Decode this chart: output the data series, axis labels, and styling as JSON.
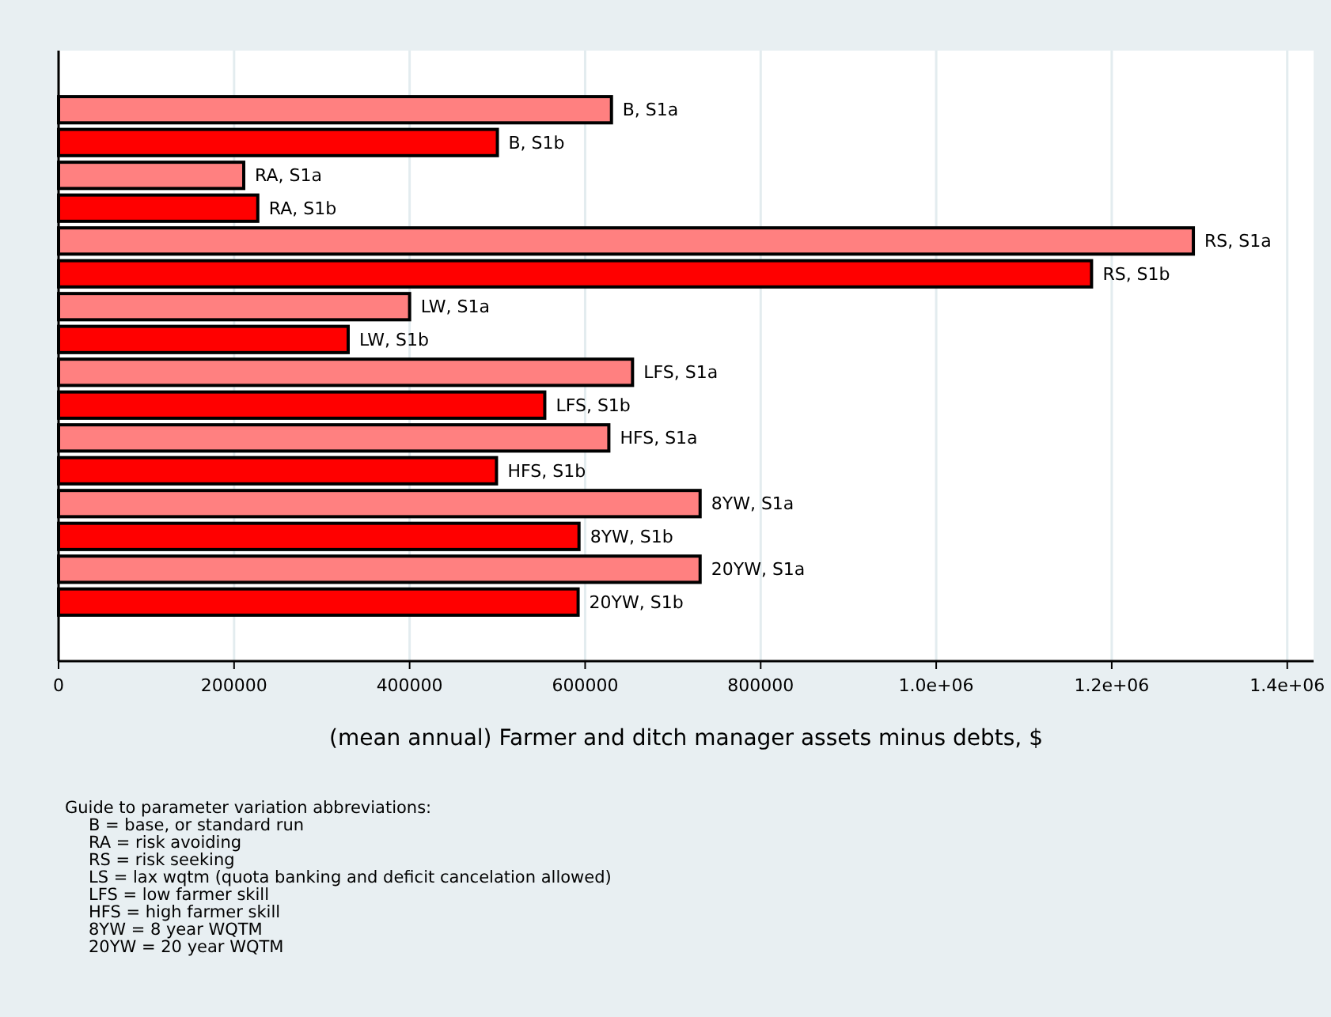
{
  "chart_data": {
    "type": "bar",
    "orientation": "horizontal",
    "xlabel": "(mean annual) Farmer and ditch manager assets minus debts, $",
    "categories": [
      "B, S1a",
      "B, S1b",
      "RA, S1a",
      "RA, S1b",
      "RS, S1a",
      "RS, S1b",
      "LW, S1a",
      "LW, S1b",
      "LFS, S1a",
      "LFS, S1b",
      "HFS, S1a",
      "HFS, S1b",
      "8YW, S1a",
      "8YW, S1b",
      "20YW, S1a",
      "20YW, S1b"
    ],
    "values": [
      630000,
      500000,
      211000,
      227000,
      1293000,
      1177000,
      400000,
      330000,
      654000,
      554000,
      627000,
      499000,
      731000,
      593000,
      731000,
      592000
    ],
    "colors": [
      "#ff8080",
      "#ff0000",
      "#ff8080",
      "#ff0000",
      "#ff8080",
      "#ff0000",
      "#ff8080",
      "#ff0000",
      "#ff8080",
      "#ff0000",
      "#ff8080",
      "#ff0000",
      "#ff8080",
      "#ff0000",
      "#ff8080",
      "#ff0000"
    ],
    "xlim": [
      0,
      1430000
    ],
    "xticks": [
      0,
      200000,
      400000,
      600000,
      800000,
      {
        "value": 1000000,
        "label": "1.0e+06"
      },
      {
        "value": 1200000,
        "label": "1.2e+06"
      },
      {
        "value": 1400000,
        "label": "1.4e+06"
      }
    ],
    "grid": "x",
    "annotations": [
      "Guide to parameter variation abbreviations:",
      "B = base, or standard run",
      "RA = risk avoiding",
      "RS = risk seeking",
      "LS = lax wqtm (quota banking and deficit cancelation allowed)",
      "LFS = low farmer skill",
      "HFS = high farmer skill",
      "8YW = 8 year WQTM",
      "20YW = 20 year WQTM"
    ]
  }
}
